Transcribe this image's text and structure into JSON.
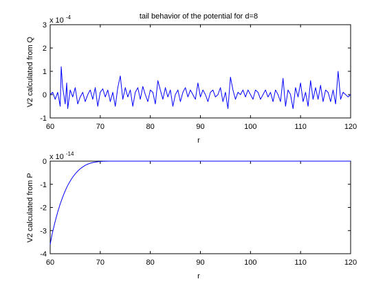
{
  "figure": {
    "background": "#ffffff",
    "line_color": "#0000ff"
  },
  "chart_data": [
    {
      "type": "line",
      "title": "tail behavior of the potential for d=8",
      "xlabel": "r",
      "ylabel": "V2 calculated from Q",
      "scale_label": "x 10",
      "scale_exponent": "-4",
      "xlim": [
        60,
        120
      ],
      "ylim": [
        -1,
        3
      ],
      "xticks": [
        60,
        70,
        80,
        90,
        100,
        110,
        120
      ],
      "yticks": [
        -1,
        0,
        1,
        2,
        3
      ],
      "x": [
        60,
        60.5,
        61,
        61.5,
        62,
        62.2,
        62.5,
        63,
        63.3,
        63.5,
        64,
        64.5,
        65,
        65.5,
        66,
        66.5,
        67,
        67.5,
        68,
        68.5,
        69,
        69.5,
        70,
        70.5,
        71,
        71.5,
        72,
        72.5,
        73,
        73.5,
        74,
        74.5,
        75,
        75.5,
        76,
        76.5,
        77,
        77.5,
        78,
        78.5,
        79,
        79.5,
        80,
        80.5,
        81,
        81.5,
        82,
        82.5,
        83,
        83.5,
        84,
        84.5,
        85,
        85.5,
        86,
        86.5,
        87,
        87.5,
        88,
        88.5,
        89,
        89.5,
        90,
        90.5,
        91,
        91.5,
        92,
        92.5,
        93,
        93.5,
        94,
        94.5,
        95,
        95.5,
        96,
        96.5,
        97,
        97.5,
        98,
        98.5,
        99,
        99.5,
        100,
        100.5,
        101,
        101.5,
        102,
        102.5,
        103,
        103.5,
        104,
        104.5,
        105,
        105.5,
        106,
        106.5,
        107,
        107.5,
        108,
        108.5,
        109,
        109.5,
        110,
        110.5,
        111,
        111.5,
        112,
        112.5,
        113,
        113.5,
        114,
        114.5,
        115,
        115.5,
        116,
        116.5,
        117,
        117.5,
        118,
        118.5,
        119,
        119.5,
        120
      ],
      "series": [
        {
          "values": [
            0.0,
            0.1,
            -0.2,
            0.1,
            -0.5,
            1.2,
            0.3,
            -0.4,
            0.5,
            -0.6,
            0.2,
            -0.1,
            0.3,
            -0.4,
            -0.1,
            0.1,
            -0.3,
            0.0,
            0.2,
            -0.2,
            0.3,
            -0.5,
            0.1,
            0.25,
            -0.1,
            0.2,
            -0.3,
            0.1,
            -0.5,
            0.3,
            0.8,
            -0.2,
            0.3,
            -0.1,
            0.2,
            -0.5,
            0.1,
            0.3,
            -0.2,
            0.35,
            0.0,
            -0.3,
            0.2,
            0.1,
            -0.4,
            0.6,
            0.2,
            -0.2,
            0.3,
            -0.1,
            0.2,
            -0.5,
            0.0,
            0.2,
            -0.3,
            0.1,
            0.3,
            -0.1,
            0.2,
            0.0,
            -0.2,
            0.5,
            -0.1,
            0.2,
            0.0,
            -0.3,
            0.1,
            0.2,
            -0.1,
            0.0,
            0.3,
            -0.3,
            0.1,
            -0.6,
            0.75,
            0.2,
            -0.2,
            0.1,
            0.0,
            0.2,
            -0.1,
            0.2,
            0.0,
            -0.2,
            0.2,
            0.1,
            -0.2,
            0.0,
            0.2,
            -0.1,
            0.1,
            -0.3,
            0.2,
            0.0,
            -0.3,
            0.7,
            -0.5,
            0.2,
            0.0,
            -0.6,
            0.3,
            -0.1,
            0.5,
            -0.3,
            0.1,
            -0.5,
            0.6,
            -0.2,
            0.3,
            -0.2,
            0.4,
            -0.3,
            0.2,
            0.1,
            -0.3,
            0.2,
            -0.4,
            1.0,
            -0.2,
            0.1,
            0.0,
            -0.1,
            0.0
          ]
        }
      ]
    },
    {
      "type": "line",
      "title": "",
      "xlabel": "r",
      "ylabel": "V2 calculated from P",
      "scale_label": "x 10",
      "scale_exponent": "-14",
      "xlim": [
        60,
        120
      ],
      "ylim": [
        -4,
        0
      ],
      "xticks": [
        60,
        70,
        80,
        90,
        100,
        110,
        120
      ],
      "yticks": [
        -4,
        -3,
        -2,
        -1,
        0
      ],
      "x": [
        60,
        60.25,
        60.5,
        61,
        61.5,
        62,
        62.5,
        63,
        63.5,
        64,
        64.5,
        65,
        65.5,
        66,
        66.5,
        67,
        67.5,
        68,
        68.5,
        69,
        69.5,
        70,
        70.5,
        71,
        72,
        73,
        74,
        75,
        76,
        78,
        80,
        85,
        90,
        95,
        100,
        105,
        110,
        115,
        120
      ],
      "series": [
        {
          "values": [
            -3.6,
            -3.3,
            -3.05,
            -2.6,
            -2.2,
            -1.85,
            -1.55,
            -1.28,
            -1.05,
            -0.86,
            -0.69,
            -0.55,
            -0.43,
            -0.33,
            -0.25,
            -0.18,
            -0.13,
            -0.09,
            -0.06,
            -0.04,
            -0.025,
            -0.015,
            -0.008,
            -0.004,
            -0.001,
            0,
            0,
            0,
            0,
            0,
            0,
            0,
            0,
            0,
            0,
            0,
            0,
            0,
            0
          ]
        }
      ]
    }
  ]
}
